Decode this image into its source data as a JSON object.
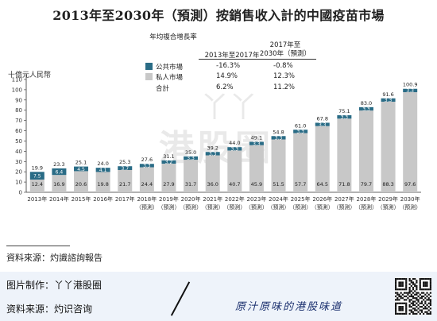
{
  "title": "2013年至2030年（預測）按銷售收入計的中國疫苗市場",
  "unit_label": "十億元人民幣",
  "cagr_table": {
    "header_label": "年均複合增長率",
    "col1": "2013年至2017年",
    "col2": "2017年至\n2030年（預測）",
    "rows": [
      {
        "label": "公共市場",
        "v1": "-16.3%",
        "v2": "-0.8%",
        "color": "#2a6c86"
      },
      {
        "label": "私人市場",
        "v1": "14.9%",
        "v2": "12.3%",
        "color": "#c8c8c8"
      },
      {
        "label": "合計",
        "v1": "6.2%",
        "v2": "11.2%",
        "color": ""
      }
    ]
  },
  "chart_data": {
    "type": "bar",
    "stacked": true,
    "categories": [
      "2013年",
      "2014年",
      "2015年",
      "2016年",
      "2017年",
      "2018年\n（預測）",
      "2019年\n（預測）",
      "2020年\n（預測）",
      "2021年\n（預測）",
      "2022年\n（預測）",
      "2023年\n（預測）",
      "2024年\n（預測）",
      "2025年\n（預測）",
      "2026年\n（預測）",
      "2027年\n（預測）",
      "2028年\n（預測）",
      "2029年\n（預測）",
      "2030年\n（預測）"
    ],
    "series": [
      {
        "name": "私人市場",
        "color": "#c8c8c8",
        "values": [
          12.4,
          16.9,
          20.6,
          19.8,
          21.7,
          24.4,
          27.9,
          31.7,
          36.0,
          40.7,
          45.9,
          51.5,
          57.7,
          64.5,
          71.8,
          79.7,
          88.3,
          97.6
        ]
      },
      {
        "name": "公共市場",
        "color": "#2a6c86",
        "values": [
          7.5,
          6.4,
          4.5,
          4.1,
          3.7,
          3.3,
          3.2,
          3.3,
          3.3,
          3.3,
          3.3,
          3.3,
          3.3,
          3.3,
          3.3,
          3.3,
          3.3,
          3.3
        ]
      }
    ],
    "totals": [
      19.9,
      23.3,
      25.1,
      24.0,
      25.3,
      27.6,
      31.1,
      35.0,
      39.2,
      44.0,
      49.1,
      54.8,
      61.0,
      67.8,
      75.1,
      83.0,
      91.6,
      100.9
    ],
    "private_labels": [
      "12.4",
      "16.9",
      "20.6",
      "19.8",
      "21.7",
      "24.4",
      "27.9",
      "31.7",
      "36.0",
      "40.7",
      "45.9",
      "51.5",
      "57.7",
      "64.5",
      "71.8",
      "79.7",
      "88.3",
      "97.6"
    ],
    "public_labels": [
      "7.5",
      "6.4",
      "4.5",
      "4.1",
      "3.7",
      "3.3",
      "3.2",
      "3.3",
      "3.3",
      "3.3",
      "3.3",
      "3.3",
      "3.3",
      "3.3",
      "3.3",
      "3.3",
      "3.3",
      "3.3"
    ],
    "total_labels": [
      "19.9",
      "23.3",
      "25.1",
      "24.0",
      "25.3",
      "27.6",
      "31.1",
      "35.0",
      "39.2",
      "44.0",
      "49.1",
      "54.8",
      "61.0",
      "67.8",
      "75.1",
      "83.0",
      "91.6",
      "100.9"
    ],
    "yticks": [
      "0",
      "10",
      "20",
      "30",
      "40",
      "50",
      "60",
      "70",
      "80",
      "90",
      "100",
      "110"
    ],
    "ylim": [
      0,
      110
    ],
    "ylabel": "十億元人民幣",
    "grid": false
  },
  "source": "資料來源：灼識諮詢報告",
  "footer": {
    "made_by": "图片制作：丫丫港股圈",
    "data_source": "资料来源：灼识咨询",
    "slogan": "原汁原味的港股味道",
    "watermark": "港股圈",
    "watermark_yy": "丫丫"
  }
}
